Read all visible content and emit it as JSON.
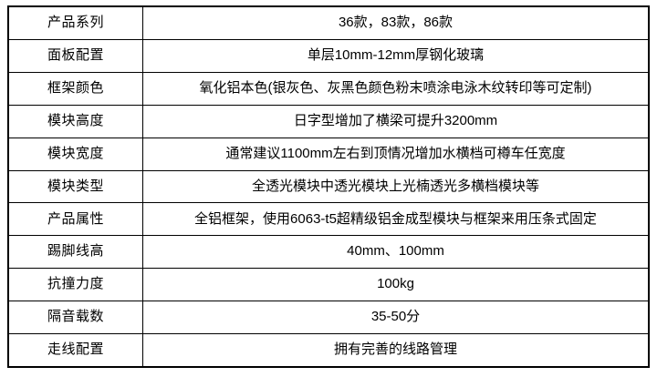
{
  "table": {
    "colors": {
      "border": "#000000",
      "text": "#000000",
      "background": "#ffffff"
    },
    "rows": [
      {
        "label": "产品系列",
        "value": "36款，83款，86款"
      },
      {
        "label": "面板配置",
        "value": "单层10mm-12mm厚钢化玻璃"
      },
      {
        "label": "框架颜色",
        "value": "氧化铝本色(银灰色、灰黑色颜色粉末喷涂电泳木纹转印等可定制)"
      },
      {
        "label": "模块高度",
        "value": "日字型增加了横梁可提升3200mm"
      },
      {
        "label": "模块宽度",
        "value": "通常建议1100mm左右到顶情况增加水横档可樽车任宽度"
      },
      {
        "label": "模块类型",
        "value": "全透光模块中透光模块上光楠透光多横档模块等"
      },
      {
        "label": "产品属性",
        "value": "全铝框架，使用6063-t5超精级铝金成型模块与框架来用压条式固定"
      },
      {
        "label": "踢脚线高",
        "value": "40mm、100mm"
      },
      {
        "label": "抗撞力度",
        "value": "100kg"
      },
      {
        "label": "隔音载数",
        "value": "35-50分"
      },
      {
        "label": "走线配置",
        "value": "拥有完善的线路管理"
      }
    ]
  }
}
